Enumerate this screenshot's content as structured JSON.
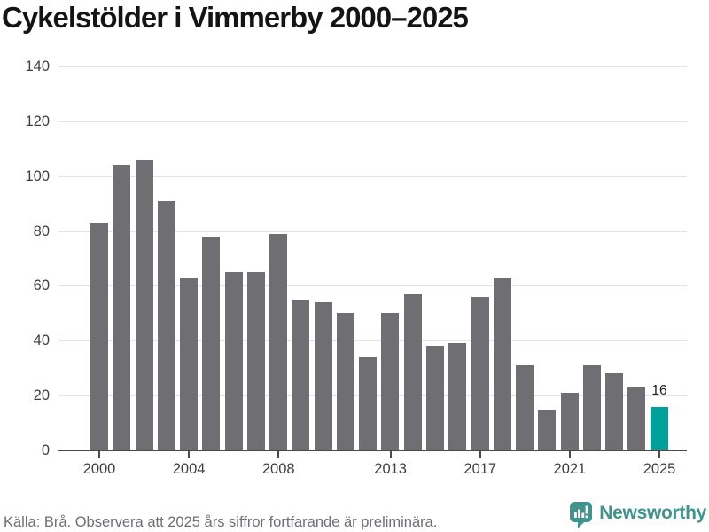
{
  "title": "Cykelstölder i Vimmerby 2000–2025",
  "chart_data": {
    "type": "bar",
    "x": [
      2000,
      2001,
      2002,
      2003,
      2004,
      2005,
      2006,
      2007,
      2008,
      2009,
      2010,
      2011,
      2012,
      2013,
      2014,
      2015,
      2016,
      2017,
      2018,
      2019,
      2020,
      2021,
      2022,
      2023,
      2024,
      2025
    ],
    "values": [
      83,
      104,
      106,
      91,
      63,
      78,
      65,
      65,
      79,
      55,
      54,
      50,
      34,
      50,
      57,
      38,
      39,
      56,
      63,
      31,
      15,
      21,
      31,
      28,
      23,
      16
    ],
    "title": "Cykelstölder i Vimmerby 2000–2025",
    "xlabel": "",
    "ylabel": "",
    "ylim": [
      0,
      140
    ],
    "yticks": [
      0,
      20,
      40,
      60,
      80,
      100,
      120,
      140
    ],
    "xticks": [
      2000,
      2004,
      2008,
      2013,
      2017,
      2021,
      2025
    ],
    "grid": "horizontal",
    "legend": "none",
    "highlight_year": 2025,
    "annotation": {
      "year": 2025,
      "label": "16"
    },
    "bar_color": "#6f6e73",
    "highlight_color": "#00a19a",
    "gridline_color": "#e4e4e4",
    "axis_color": "#4a4a4a"
  },
  "footer": {
    "source_note": "Källa: Brå. Observera att 2025 års siffror fortfarande är preliminära."
  },
  "branding": {
    "logo_text": "Newsworthy",
    "logo_color": "#3f948d",
    "logo_icon": "bar-chart-speech-bubble-icon"
  }
}
